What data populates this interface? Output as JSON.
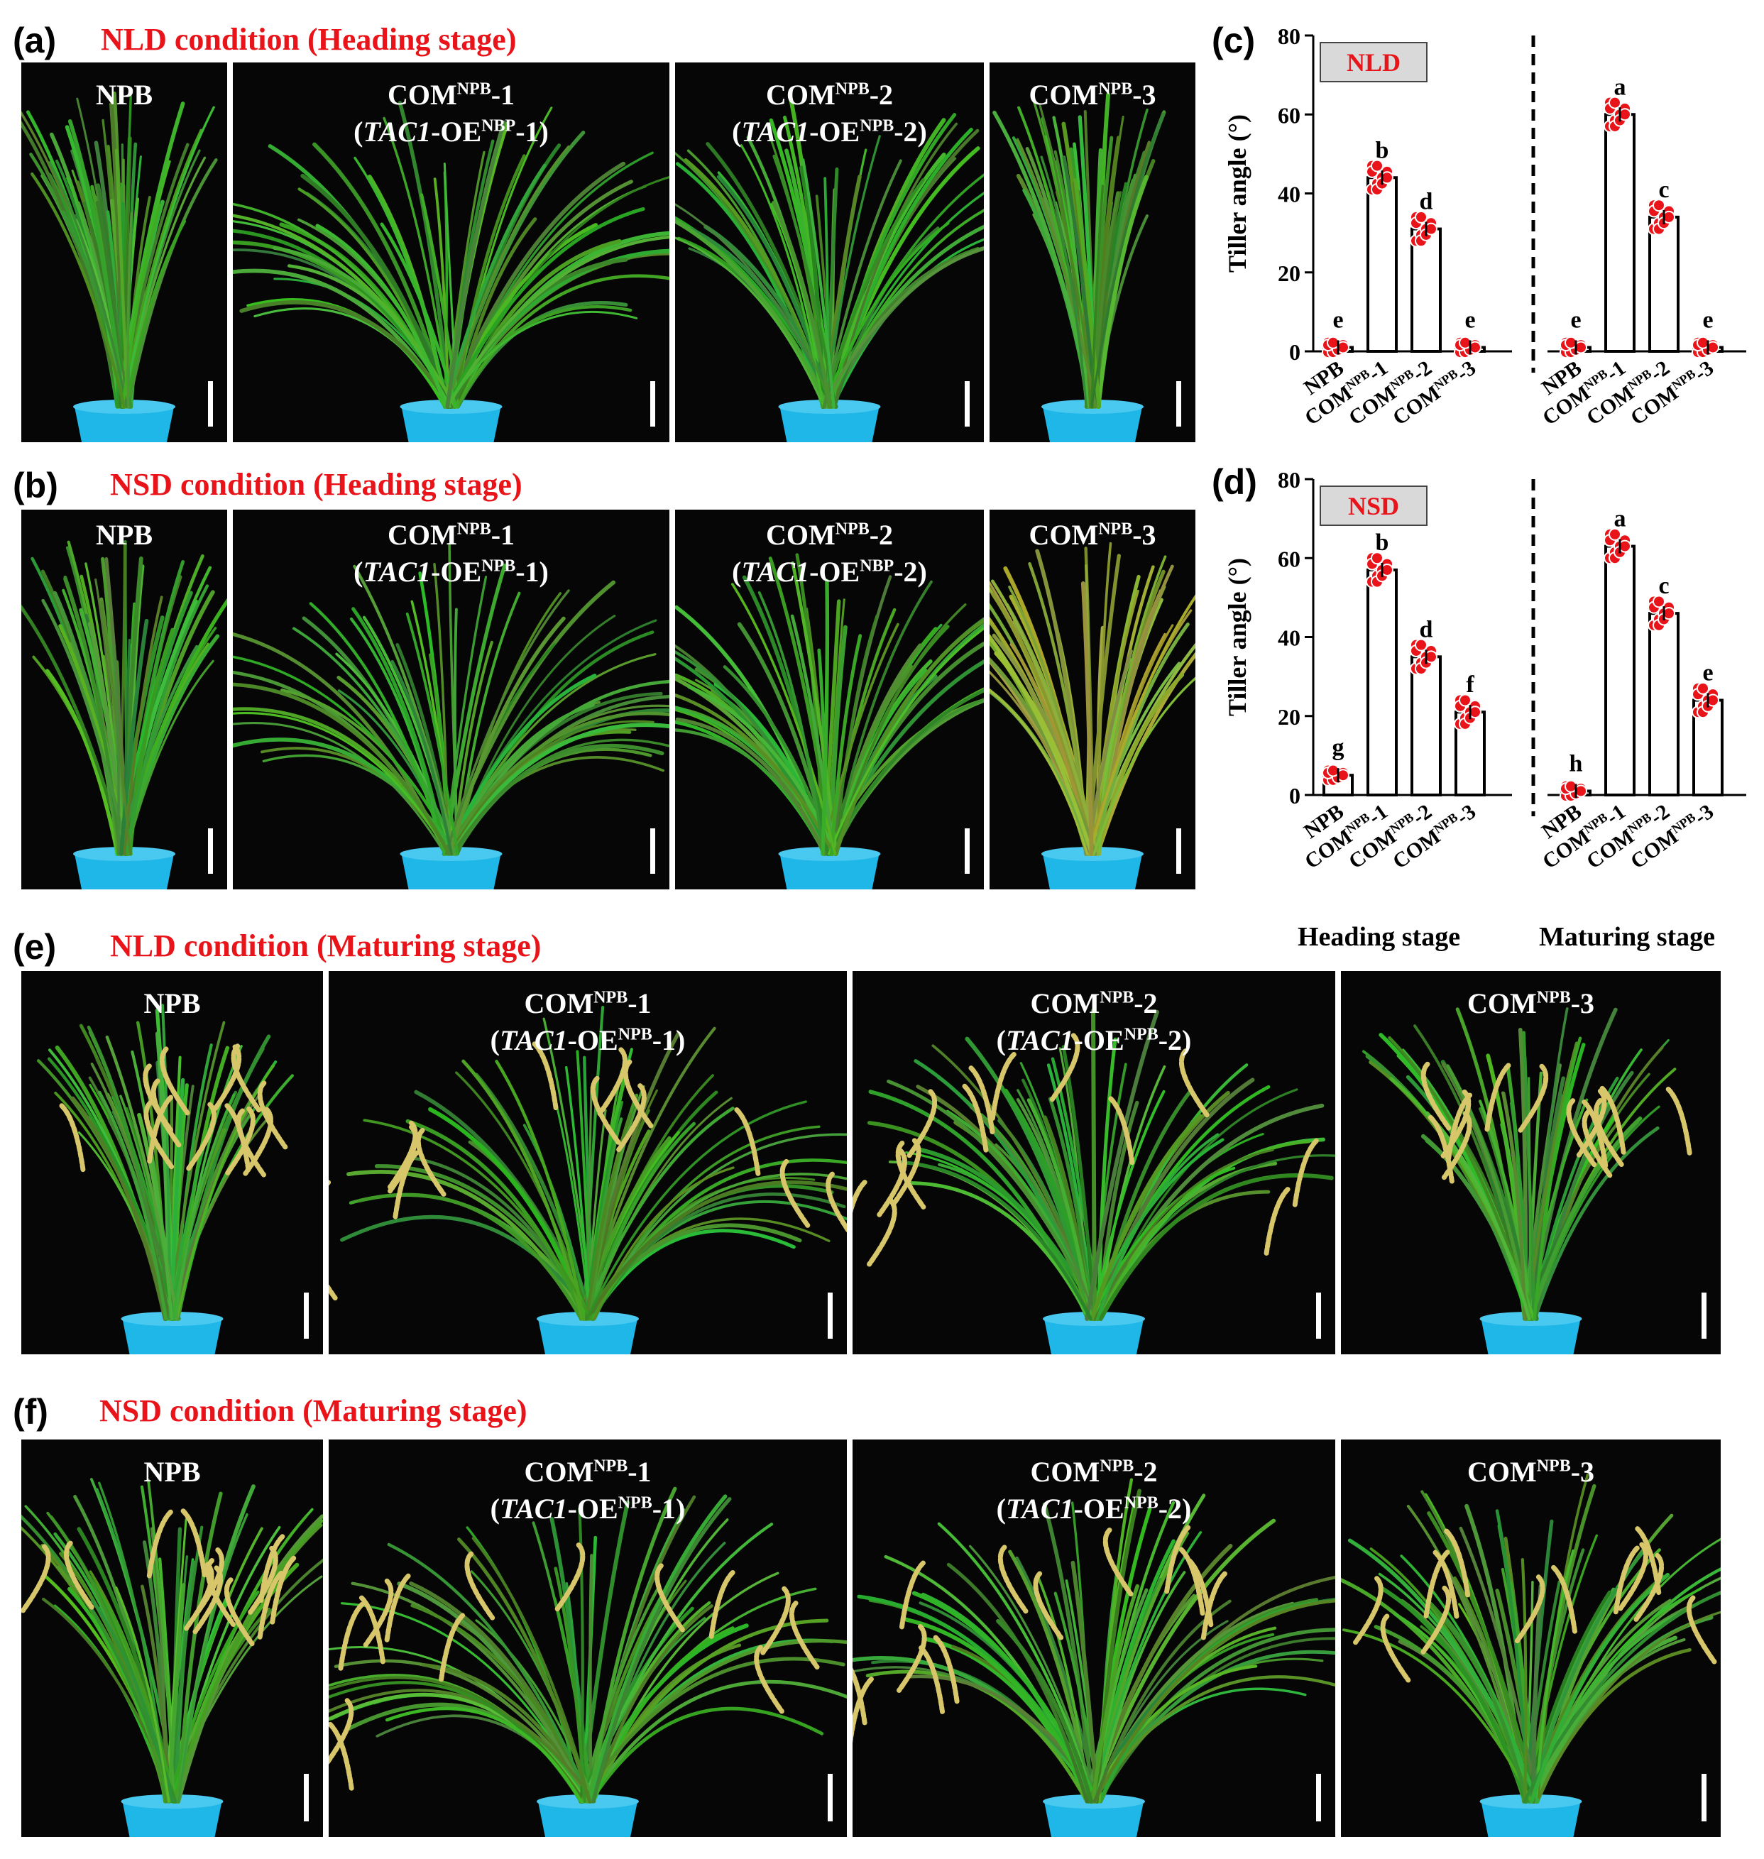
{
  "panels": {
    "a": {
      "letter": "(a)",
      "title": "NLD condition (Heading stage)",
      "photos": [
        {
          "line1": "NPB",
          "line2": null
        },
        {
          "line1_main": "COM",
          "line1_sup": "NPB",
          "line1_suffix": "-1",
          "line2_gene": "TAC1",
          "line2_mid": "-OE",
          "line2_sup": "NBP",
          "line2_suffix": "-1)"
        },
        {
          "line1_main": "COM",
          "line1_sup": "NPB",
          "line1_suffix": "-2",
          "line2_gene": "TAC1",
          "line2_mid": "-OE",
          "line2_sup": "NPB",
          "line2_suffix": "-2)"
        },
        {
          "line1_main": "COM",
          "line1_sup": "NPB",
          "line1_suffix": "-3",
          "line2_gene": null
        }
      ]
    },
    "b": {
      "letter": "(b)",
      "title": "NSD condition  (Heading stage)",
      "photos": [
        {
          "line1": "NPB",
          "line2": null
        },
        {
          "line1_main": "COM",
          "line1_sup": "NPB",
          "line1_suffix": "-1",
          "line2_gene": "TAC1",
          "line2_mid": "-OE",
          "line2_sup": "NPB",
          "line2_suffix": "-1)"
        },
        {
          "line1_main": "COM",
          "line1_sup": "NPB",
          "line1_suffix": "-2",
          "line2_gene": "TAC1",
          "line2_mid": "-OE",
          "line2_sup": "NBP",
          "line2_suffix": "-2)"
        },
        {
          "line1_main": "COM",
          "line1_sup": "NPB",
          "line1_suffix": "-3",
          "line2_gene": null
        }
      ]
    },
    "c": {
      "letter": "(c)"
    },
    "d": {
      "letter": "(d)"
    },
    "e": {
      "letter": "(e)",
      "title": "NLD condition (Maturing stage)",
      "photos": [
        {
          "line1": "NPB",
          "line2": null
        },
        {
          "line1_main": "COM",
          "line1_sup": "NPB",
          "line1_suffix": "-1",
          "line2_gene": "TAC1",
          "line2_mid": "-OE",
          "line2_sup": "NPB",
          "line2_suffix": "-1)"
        },
        {
          "line1_main": "COM",
          "line1_sup": "NPB",
          "line1_suffix": "-2",
          "line2_gene": "TAC1",
          "line2_mid": "-OE",
          "line2_sup": "NPB",
          "line2_suffix": "-2)"
        },
        {
          "line1_main": "COM",
          "line1_sup": "NPB",
          "line1_suffix": "-3",
          "line2_gene": null
        }
      ]
    },
    "f": {
      "letter": "(f)",
      "title": "NSD condition (Maturing stage)",
      "photos": [
        {
          "line1": "NPB",
          "line2": null
        },
        {
          "line1_main": "COM",
          "line1_sup": "NPB",
          "line1_suffix": "-1",
          "line2_gene": "TAC1",
          "line2_mid": "-OE",
          "line2_sup": "NPB",
          "line2_suffix": "-1)"
        },
        {
          "line1_main": "COM",
          "line1_sup": "NPB",
          "line1_suffix": "-2",
          "line2_gene": "TAC1",
          "line2_mid": "-OE",
          "line2_sup": "NPB",
          "line2_suffix": "-2)"
        },
        {
          "line1_main": "COM",
          "line1_sup": "NPB",
          "line1_suffix": "-3",
          "line2_gene": null
        }
      ]
    }
  },
  "stage_labels": {
    "heading": "Heading stage",
    "maturing": "Maturing stage"
  },
  "chart_data": [
    {
      "type": "bar",
      "panel": "c",
      "condition_label": "NLD",
      "ylabel": "Tiller angle (°)",
      "ylim": [
        0,
        80
      ],
      "yticks": [
        0,
        20,
        40,
        60,
        80
      ],
      "categories": [
        "NPB",
        "COM-NPB-1",
        "COM-NPB-2",
        "COM-NPB-3"
      ],
      "category_tick_labels": [
        {
          "main": "NPB",
          "sup": "",
          "suffix": ""
        },
        {
          "main": "COM",
          "sup": "NPB",
          "suffix": "-1"
        },
        {
          "main": "COM",
          "sup": "NPB",
          "suffix": "-2"
        },
        {
          "main": "COM",
          "sup": "NPB",
          "suffix": "-3"
        }
      ],
      "series": [
        {
          "name": "Heading stage",
          "values": [
            1,
            44,
            31,
            1
          ],
          "letters": [
            "e",
            "b",
            "d",
            "e"
          ]
        },
        {
          "name": "Maturing stage",
          "values": [
            1,
            60,
            34,
            1
          ],
          "letters": [
            "e",
            "a",
            "c",
            "e"
          ]
        }
      ],
      "point_color": "#e8141a"
    },
    {
      "type": "bar",
      "panel": "d",
      "condition_label": "NSD",
      "ylabel": "Tiller angle (°)",
      "ylim": [
        0,
        80
      ],
      "yticks": [
        0,
        20,
        40,
        60,
        80
      ],
      "categories": [
        "NPB",
        "COM-NPB-1",
        "COM-NPB-2",
        "COM-NPB-3"
      ],
      "category_tick_labels": [
        {
          "main": "NPB",
          "sup": "",
          "suffix": ""
        },
        {
          "main": "COM",
          "sup": "NPB",
          "suffix": "-1"
        },
        {
          "main": "COM",
          "sup": "NPB",
          "suffix": "-2"
        },
        {
          "main": "COM",
          "sup": "NPB",
          "suffix": "-3"
        }
      ],
      "series": [
        {
          "name": "Heading stage",
          "values": [
            5,
            57,
            35,
            21
          ],
          "letters": [
            "g",
            "b",
            "d",
            "f"
          ]
        },
        {
          "name": "Maturing stage",
          "values": [
            1,
            63,
            46,
            24
          ],
          "letters": [
            "h",
            "a",
            "c",
            "e"
          ]
        }
      ],
      "point_color": "#e8141a"
    }
  ]
}
